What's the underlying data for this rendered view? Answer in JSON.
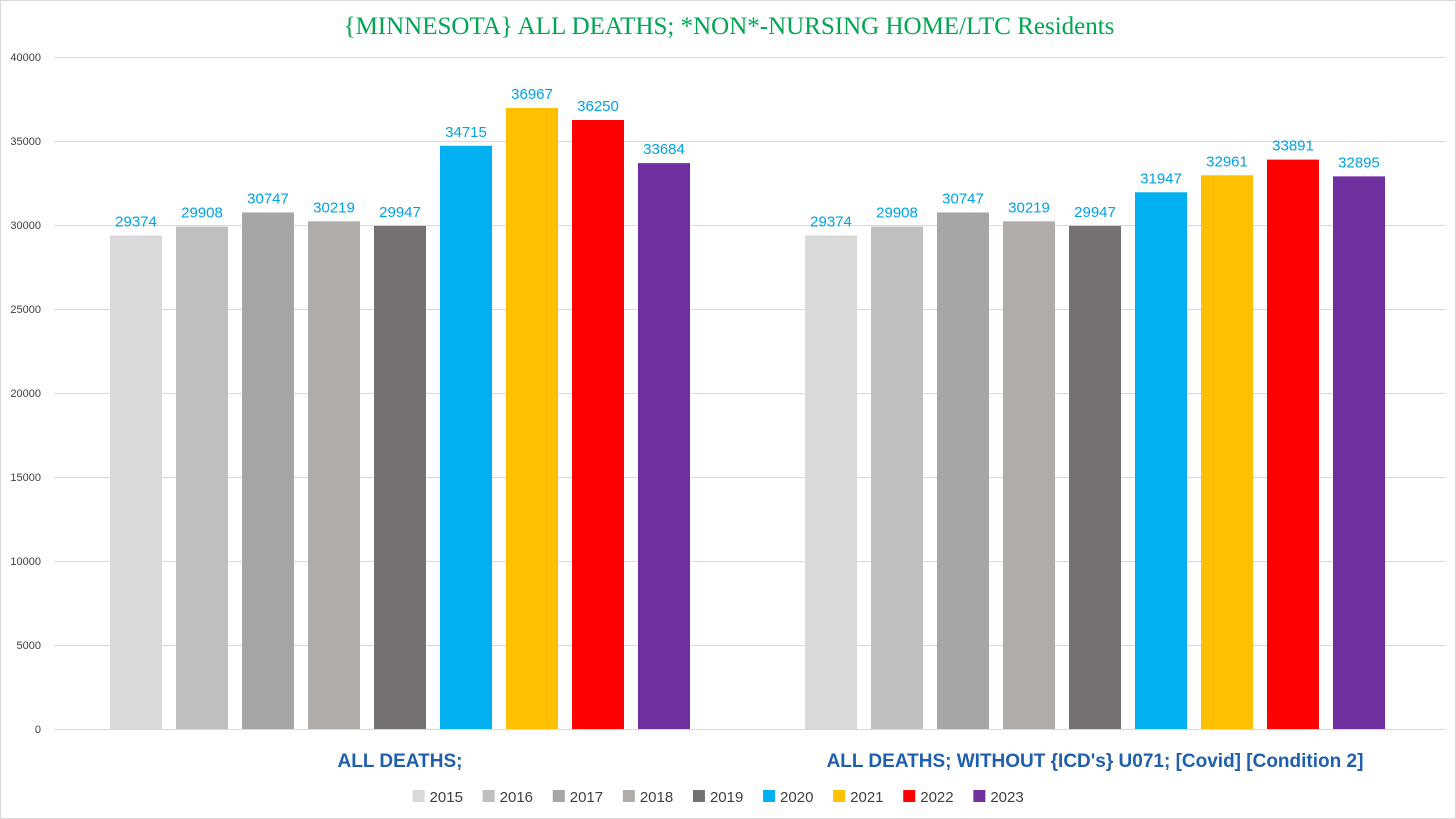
{
  "chart_data": {
    "type": "bar",
    "title": "{MINNESOTA}  ALL DEATHS; *NON*-NURSING HOME/LTC Residents",
    "xlabel": "",
    "ylabel": "",
    "ylim": [
      0,
      40000
    ],
    "yticks": [
      0,
      5000,
      10000,
      15000,
      20000,
      25000,
      30000,
      35000,
      40000
    ],
    "grid": true,
    "legend_position": "bottom",
    "categories": [
      "ALL DEATHS;",
      "ALL DEATHS;  WITHOUT {ICD's} U071;  [Covid]  [Condition 2]"
    ],
    "series": [
      {
        "name": "2015",
        "color": "#d9d9d9",
        "values": [
          29374,
          29374
        ]
      },
      {
        "name": "2016",
        "color": "#bfbfbf",
        "values": [
          29908,
          29908
        ]
      },
      {
        "name": "2017",
        "color": "#a6a6a6",
        "values": [
          30747,
          30747
        ]
      },
      {
        "name": "2018",
        "color": "#b0acaa",
        "values": [
          30219,
          30219
        ]
      },
      {
        "name": "2019",
        "color": "#767171",
        "values": [
          29947,
          29947
        ]
      },
      {
        "name": "2020",
        "color": "#00b0f0",
        "values": [
          34715,
          31947
        ]
      },
      {
        "name": "2021",
        "color": "#ffc000",
        "values": [
          36967,
          32961
        ]
      },
      {
        "name": "2022",
        "color": "#ff0000",
        "values": [
          36250,
          33891
        ]
      },
      {
        "name": "2023",
        "color": "#7030a0",
        "values": [
          33684,
          32895
        ]
      }
    ],
    "label_color": "#00a2e8"
  }
}
